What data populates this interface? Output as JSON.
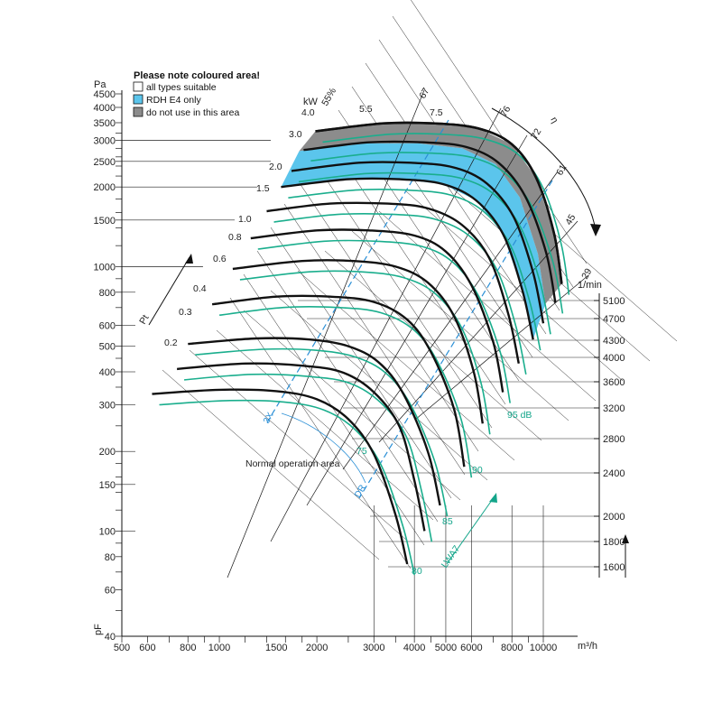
{
  "chart_data": {
    "type": "line",
    "title": "",
    "x_axis": {
      "unit": "m³/h",
      "scale": "log",
      "range": [
        500,
        11500
      ],
      "ticks": [
        500,
        600,
        800,
        1000,
        1500,
        2000,
        3000,
        4000,
        5000,
        6000,
        8000,
        10000
      ]
    },
    "y_axis": {
      "unit": "Pa",
      "label": "pF",
      "scale": "log",
      "range": [
        40,
        4600
      ],
      "ticks": [
        40,
        60,
        80,
        100,
        150,
        200,
        300,
        400,
        500,
        600,
        800,
        1000,
        1500,
        2000,
        2500,
        3000,
        3500,
        4000,
        4500
      ]
    },
    "legend": {
      "title": "Please note coloured area!",
      "position": "top-left",
      "items": [
        {
          "label": "all types suitable",
          "color": "#ffffff"
        },
        {
          "label": "RDH E4 only",
          "color": "#5bc5ec"
        },
        {
          "label": "do not use in this area",
          "color": "#8c8c8c"
        }
      ]
    },
    "speed_scale": {
      "unit": "1/min",
      "labels": [
        "1600",
        "1800",
        "2000",
        "2400",
        "2800",
        "3200",
        "3600",
        "4000",
        "4300",
        "4700",
        "5100"
      ]
    },
    "power_labels": {
      "unit": "kW",
      "values": [
        "0.2",
        "0.3",
        "0.4",
        "0.6",
        "0.8",
        "1.0",
        "1.5",
        "2.0",
        "3.0",
        "4.0",
        "5.5",
        "7.5"
      ]
    },
    "efficiency_labels": {
      "unit": "%",
      "values": [
        "29",
        "45",
        "55%",
        "61",
        "67",
        "72",
        "76"
      ],
      "symbol": "η"
    },
    "noise_labels": {
      "values": [
        "80",
        "85",
        "90",
        "95 dB",
        "75"
      ],
      "label": "LWA7"
    },
    "series": [
      {
        "speed": 1600,
        "color": "#111111",
        "x": [
          620,
          1000,
          1500,
          2000,
          2500,
          3000,
          3500,
          3800
        ],
        "y": [
          330,
          342,
          338,
          315,
          265,
          195,
          115,
          75
        ]
      },
      {
        "speed": 1800,
        "color": "#111111",
        "x": [
          740,
          1200,
          1800,
          2400,
          3000,
          3600,
          4000,
          4300
        ],
        "y": [
          410,
          430,
          422,
          398,
          335,
          248,
          155,
          100
        ]
      },
      {
        "speed": 2000,
        "color": "#111111",
        "x": [
          800,
          1300,
          1900,
          2500,
          3100,
          3700,
          4400,
          4800
        ],
        "y": [
          510,
          535,
          530,
          500,
          435,
          330,
          200,
          125
        ]
      },
      {
        "speed": 2400,
        "color": "#111111",
        "x": [
          950,
          1500,
          2200,
          3000,
          3800,
          4500,
          5300,
          5700
        ],
        "y": [
          720,
          770,
          770,
          735,
          630,
          475,
          290,
          175
        ]
      },
      {
        "speed": 2800,
        "color": "#111111",
        "x": [
          1100,
          1800,
          2600,
          3500,
          4400,
          5300,
          6100,
          6500
        ],
        "y": [
          980,
          1050,
          1050,
          1000,
          870,
          650,
          400,
          255
        ]
      },
      {
        "speed": 3200,
        "color": "#111111",
        "x": [
          1250,
          2000,
          2900,
          4000,
          5000,
          6000,
          7000,
          7500
        ],
        "y": [
          1280,
          1370,
          1370,
          1310,
          1140,
          850,
          520,
          335
        ]
      },
      {
        "speed": 3600,
        "color": "#111111",
        "x": [
          1400,
          2200,
          3300,
          4400,
          5600,
          6800,
          7800,
          8400
        ],
        "y": [
          1620,
          1730,
          1730,
          1660,
          1440,
          1080,
          660,
          430
        ]
      },
      {
        "speed": 4000,
        "color": "#111111",
        "x": [
          1550,
          2500,
          3600,
          4900,
          6200,
          7500,
          8600,
          9300
        ],
        "y": [
          2000,
          2140,
          2140,
          2050,
          1780,
          1330,
          820,
          530
        ]
      },
      {
        "speed": 4300,
        "color": "#111111",
        "x": [
          1670,
          2700,
          3900,
          5300,
          6700,
          8100,
          9300,
          10000
        ],
        "y": [
          2300,
          2470,
          2470,
          2370,
          2060,
          1540,
          950,
          610
        ]
      },
      {
        "speed": 4700,
        "color": "#111111",
        "x": [
          1820,
          2900,
          4300,
          5800,
          7300,
          8800,
          10200,
          10900
        ],
        "y": [
          2760,
          2950,
          2950,
          2830,
          2460,
          1840,
          1130,
          730
        ]
      },
      {
        "speed": 5100,
        "color": "#111111",
        "x": [
          1980,
          3200,
          4600,
          6300,
          8000,
          9500,
          10800,
          11400
        ],
        "y": [
          3250,
          3480,
          3480,
          3330,
          2900,
          2170,
          1330,
          860
        ]
      }
    ]
  }
}
